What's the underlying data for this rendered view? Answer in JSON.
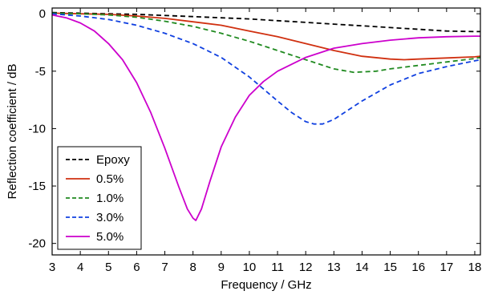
{
  "chart_data": {
    "type": "line",
    "xlabel": "Frequency / GHz",
    "ylabel": "Reflection coefficient / dB",
    "xlim": [
      3,
      18.2
    ],
    "ylim": [
      -21,
      0.5
    ],
    "xticks": [
      3,
      4,
      5,
      6,
      7,
      8,
      9,
      10,
      11,
      12,
      13,
      14,
      15,
      16,
      17,
      18
    ],
    "yticks": [
      0,
      -5,
      -10,
      -15,
      -20
    ],
    "grid": false,
    "legend_position": "bottom-left",
    "series": [
      {
        "name": "Epoxy",
        "color": "#000000",
        "dash": "dashed",
        "x": [
          3,
          4,
          5,
          6,
          7,
          8,
          9,
          10,
          11,
          12,
          13,
          14,
          15,
          16,
          17,
          18,
          18.2
        ],
        "y": [
          0.1,
          0.05,
          0.0,
          -0.05,
          -0.15,
          -0.25,
          -0.35,
          -0.45,
          -0.6,
          -0.75,
          -0.9,
          -1.05,
          -1.2,
          -1.35,
          -1.5,
          -1.55,
          -1.55
        ]
      },
      {
        "name": "0.5%",
        "color": "#d03010",
        "dash": "solid",
        "x": [
          3,
          4,
          5,
          6,
          7,
          8,
          9,
          10,
          11,
          12,
          13,
          14,
          15,
          15.5,
          16,
          17,
          18,
          18.2
        ],
        "y": [
          0.05,
          0.0,
          -0.05,
          -0.2,
          -0.4,
          -0.7,
          -1.0,
          -1.5,
          -2.0,
          -2.6,
          -3.2,
          -3.7,
          -3.95,
          -4.0,
          -3.95,
          -3.85,
          -3.75,
          -3.7
        ]
      },
      {
        "name": "1.0%",
        "color": "#208a20",
        "dash": "dashed",
        "x": [
          3,
          4,
          5,
          6,
          7,
          8,
          9,
          10,
          11,
          12,
          13,
          13.7,
          14.5,
          15,
          16,
          17,
          18,
          18.2
        ],
        "y": [
          0.05,
          0.0,
          -0.1,
          -0.3,
          -0.65,
          -1.1,
          -1.7,
          -2.4,
          -3.2,
          -4.0,
          -4.8,
          -5.1,
          -5.0,
          -4.8,
          -4.5,
          -4.2,
          -3.9,
          -3.8
        ]
      },
      {
        "name": "3.0%",
        "color": "#1040e0",
        "dash": "dashed",
        "x": [
          3,
          4,
          5,
          6,
          7,
          8,
          9,
          10,
          11,
          11.5,
          12,
          12.3,
          12.6,
          13,
          14,
          15,
          16,
          17,
          18,
          18.2
        ],
        "y": [
          0.0,
          -0.2,
          -0.5,
          -1.0,
          -1.7,
          -2.6,
          -3.8,
          -5.5,
          -7.6,
          -8.6,
          -9.4,
          -9.6,
          -9.6,
          -9.2,
          -7.6,
          -6.2,
          -5.2,
          -4.6,
          -4.1,
          -4.0
        ]
      },
      {
        "name": "5.0%",
        "color": "#cc00cc",
        "dash": "solid",
        "x": [
          3,
          3.5,
          4,
          4.5,
          5,
          5.5,
          6,
          6.5,
          7,
          7.5,
          7.8,
          8.0,
          8.1,
          8.3,
          8.6,
          9,
          9.5,
          10,
          10.5,
          11,
          12,
          13,
          14,
          15,
          16,
          17,
          18,
          18.2
        ],
        "y": [
          -0.1,
          -0.35,
          -0.8,
          -1.5,
          -2.6,
          -4.0,
          -6.0,
          -8.6,
          -11.7,
          -15.1,
          -17.0,
          -17.8,
          -18.0,
          -17.0,
          -14.6,
          -11.6,
          -9.0,
          -7.1,
          -5.9,
          -5.0,
          -3.8,
          -3.0,
          -2.6,
          -2.3,
          -2.1,
          -2.0,
          -1.95,
          -1.95
        ]
      }
    ]
  }
}
